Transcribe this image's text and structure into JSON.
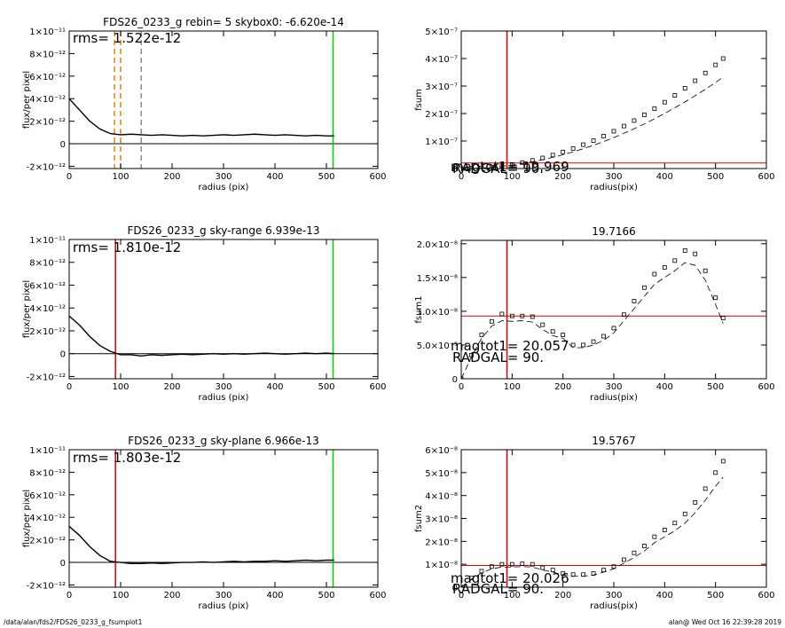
{
  "footer_left": "/data/alan/fds2/FDS26_0233_g_fsumplot1",
  "footer_right": "alan@  Wed Oct 16 22:39:28 2019",
  "chart_data": [
    {
      "type": "line",
      "title": "FDS26_0233_g rebin= 5    skybox0: -6.620e-14",
      "annotations": [
        "rms= 1.522e-12"
      ],
      "xlabel": "radius (pix)",
      "ylabel": "flux/per pixel",
      "xlim": [
        0,
        600
      ],
      "xticks": [
        0,
        100,
        200,
        300,
        400,
        500,
        600
      ],
      "ylim": [
        -2.2e-12,
        1e-11
      ],
      "yticks": [
        {
          "value": -2e-12,
          "label": "-2×10⁻¹²"
        },
        0,
        {
          "value": 2e-12,
          "label": "2×10⁻¹²"
        },
        {
          "value": 4e-12,
          "label": "4×10⁻¹²"
        },
        {
          "value": 6e-12,
          "label": "6×10⁻¹²"
        },
        {
          "value": 8e-12,
          "label": "8×10⁻¹²"
        },
        {
          "value": 1e-11,
          "label": "1×10⁻¹¹"
        }
      ],
      "x": [
        0,
        20,
        40,
        60,
        80,
        100,
        120,
        140,
        160,
        180,
        200,
        220,
        240,
        260,
        280,
        300,
        320,
        340,
        360,
        380,
        400,
        420,
        440,
        460,
        480,
        500,
        515
      ],
      "series": [
        {
          "color": "#000000",
          "style": "line",
          "values": [
            4e-12,
            3e-12,
            2e-12,
            1.3e-12,
            9e-13,
            8e-13,
            8.5e-13,
            8e-13,
            7.5e-13,
            8e-13,
            7.5e-13,
            7e-13,
            7.5e-13,
            7e-13,
            7.5e-13,
            8e-13,
            7.5e-13,
            8e-13,
            8.5e-13,
            8e-13,
            7.5e-13,
            8e-13,
            7.5e-13,
            7e-13,
            7.5e-13,
            7e-13,
            7e-13
          ]
        }
      ],
      "vlines": [
        {
          "x": 88,
          "color": "#f08000",
          "dash": true
        },
        {
          "x": 100,
          "color": "#f08000",
          "dash": true
        },
        {
          "x": 140,
          "color": "#888888",
          "dash": true
        },
        {
          "x": 513,
          "color": "#00d000",
          "dash": false
        }
      ],
      "hlines": [
        {
          "y": 0,
          "color": "#000000"
        }
      ]
    },
    {
      "type": "line",
      "title": "",
      "annotations": [
        "magtot1= 19.969",
        "RADGAL=    90."
      ],
      "xlabel": "radius(pix)",
      "ylabel": "fsum",
      "xlim": [
        0,
        600
      ],
      "xticks": [
        0,
        100,
        200,
        300,
        400,
        500,
        600
      ],
      "ylim": [
        0,
        5e-07
      ],
      "yticks": [
        0,
        {
          "value": 1e-07,
          "label": "1×10⁻⁷"
        },
        {
          "value": 2e-07,
          "label": "2×10⁻⁷"
        },
        {
          "value": 3e-07,
          "label": "3×10⁻⁷"
        },
        {
          "value": 4e-07,
          "label": "4×10⁻⁷"
        },
        {
          "value": 5e-07,
          "label": "5×10⁻⁷"
        }
      ],
      "x": [
        0,
        20,
        40,
        60,
        80,
        100,
        120,
        140,
        160,
        180,
        200,
        220,
        240,
        260,
        280,
        300,
        320,
        340,
        360,
        380,
        400,
        420,
        440,
        460,
        480,
        500,
        515
      ],
      "series": [
        {
          "color": "#000000",
          "style": "squares",
          "values": [
            0,
            6e-10,
            2.4e-09,
            5.4e-09,
            9.7e-09,
            1.51e-08,
            2.17e-08,
            2.96e-08,
            3.86e-08,
            4.89e-08,
            6.03e-08,
            7.3e-08,
            8.69e-08,
            1.019e-07,
            1.182e-07,
            1.357e-07,
            1.544e-07,
            1.743e-07,
            1.955e-07,
            2.178e-07,
            2.413e-07,
            2.661e-07,
            2.92e-07,
            3.191e-07,
            3.475e-07,
            3.77e-07,
            4e-07
          ]
        },
        {
          "color": "#000000",
          "style": "dashed",
          "values": [
            0,
            5e-10,
            2e-09,
            4.5e-09,
            8.1e-09,
            1.25e-08,
            1.8e-08,
            2.46e-08,
            3.2e-08,
            4.06e-08,
            5e-08,
            6.06e-08,
            7.21e-08,
            8.46e-08,
            9.81e-08,
            1.126e-07,
            1.282e-07,
            1.447e-07,
            1.623e-07,
            1.808e-07,
            2.003e-07,
            2.209e-07,
            2.424e-07,
            2.649e-07,
            2.884e-07,
            3.129e-07,
            3.32e-07
          ]
        }
      ],
      "vlines": [
        {
          "x": 90,
          "color": "#e00000",
          "dash": false
        }
      ],
      "hlines": [
        {
          "y": 2e-08,
          "color": "#e00000"
        }
      ]
    },
    {
      "type": "line",
      "title": "FDS26_0233_g sky-range  6.939e-13",
      "annotations": [
        "rms= 1.810e-12"
      ],
      "xlabel": "radius (pix)",
      "ylabel": "flux/per pixel",
      "xlim": [
        0,
        600
      ],
      "xticks": [
        0,
        100,
        200,
        300,
        400,
        500,
        600
      ],
      "ylim": [
        -2.2e-12,
        1e-11
      ],
      "yticks": [
        {
          "value": -2e-12,
          "label": "-2×10⁻¹²"
        },
        0,
        {
          "value": 2e-12,
          "label": "2×10⁻¹²"
        },
        {
          "value": 4e-12,
          "label": "4×10⁻¹²"
        },
        {
          "value": 6e-12,
          "label": "6×10⁻¹²"
        },
        {
          "value": 8e-12,
          "label": "8×10⁻¹²"
        },
        {
          "value": 1e-11,
          "label": "1×10⁻¹¹"
        }
      ],
      "x": [
        0,
        20,
        40,
        60,
        80,
        100,
        120,
        140,
        160,
        180,
        200,
        220,
        240,
        260,
        280,
        300,
        320,
        340,
        360,
        380,
        400,
        420,
        440,
        460,
        480,
        500,
        515
      ],
      "series": [
        {
          "color": "#000000",
          "style": "line",
          "values": [
            3.3e-12,
            2.5e-12,
            1.5e-12,
            7e-13,
            2e-13,
            -1e-13,
            -1e-13,
            -2e-13,
            -1e-13,
            -1.5e-13,
            -1e-13,
            -5e-14,
            -1e-13,
            -5e-14,
            0,
            -5e-14,
            0,
            -5e-14,
            0,
            5e-14,
            0,
            -5e-14,
            0,
            5e-14,
            0,
            5e-14,
            0
          ]
        }
      ],
      "vlines": [
        {
          "x": 90,
          "color": "#e00000",
          "dash": false
        },
        {
          "x": 513,
          "color": "#00d000",
          "dash": false
        }
      ],
      "hlines": [
        {
          "y": 0,
          "color": "#000000"
        }
      ]
    },
    {
      "type": "line",
      "title": "19.7166",
      "annotations": [
        "magtot1=  20.057",
        "RADGAL=    90."
      ],
      "xlabel": "radius(pix)",
      "ylabel": "fsum1",
      "xlim": [
        0,
        600
      ],
      "xticks": [
        0,
        100,
        200,
        300,
        400,
        500,
        600
      ],
      "ylim": [
        0,
        2.05e-08
      ],
      "yticks": [
        0,
        {
          "value": 5e-09,
          "label": "5.0×10⁻⁹"
        },
        {
          "value": 1e-08,
          "label": "1.0×10⁻⁸"
        },
        {
          "value": 1.5e-08,
          "label": "1.5×10⁻⁸"
        },
        {
          "value": 2e-08,
          "label": "2.0×10⁻⁸"
        }
      ],
      "x": [
        0,
        20,
        40,
        60,
        80,
        100,
        120,
        140,
        160,
        180,
        200,
        220,
        240,
        260,
        280,
        300,
        320,
        340,
        360,
        380,
        400,
        420,
        440,
        460,
        480,
        500,
        515
      ],
      "series": [
        {
          "color": "#000000",
          "style": "squares",
          "values": [
            0,
            3.5e-09,
            6.5e-09,
            8.5e-09,
            9.6e-09,
            9.3e-09,
            9.3e-09,
            9.2e-09,
            8e-09,
            7e-09,
            6.5e-09,
            5e-09,
            5e-09,
            5.5e-09,
            6.3e-09,
            7.5e-09,
            9.5e-09,
            1.15e-08,
            1.35e-08,
            1.55e-08,
            1.65e-08,
            1.75e-08,
            1.9e-08,
            1.85e-08,
            1.6e-08,
            1.2e-08,
            9e-09
          ]
        },
        {
          "color": "#000000",
          "style": "dashed",
          "values": [
            0,
            3.2e-09,
            6e-09,
            7.8e-09,
            8.6e-09,
            8.5e-09,
            8.6e-09,
            8.4e-09,
            7.3e-09,
            6.4e-09,
            6e-09,
            4.6e-09,
            4.6e-09,
            5e-09,
            5.7e-09,
            6.8e-09,
            8.6e-09,
            1.04e-08,
            1.22e-08,
            1.4e-08,
            1.5e-08,
            1.6e-08,
            1.72e-08,
            1.68e-08,
            1.46e-08,
            1.1e-08,
            8.2e-09
          ]
        }
      ],
      "vlines": [
        {
          "x": 90,
          "color": "#e00000",
          "dash": false
        }
      ],
      "hlines": [
        {
          "y": 9.3e-09,
          "color": "#e00000"
        }
      ]
    },
    {
      "type": "line",
      "title": "FDS26_0233_g sky-plane  6.966e-13",
      "annotations": [
        "rms= 1.803e-12"
      ],
      "xlabel": "radius (pix)",
      "ylabel": "flux/per pixel",
      "xlim": [
        0,
        600
      ],
      "xticks": [
        0,
        100,
        200,
        300,
        400,
        500,
        600
      ],
      "ylim": [
        -2.2e-12,
        1e-11
      ],
      "yticks": [
        {
          "value": -2e-12,
          "label": "-2×10⁻¹²"
        },
        0,
        {
          "value": 2e-12,
          "label": "2×10⁻¹²"
        },
        {
          "value": 4e-12,
          "label": "4×10⁻¹²"
        },
        {
          "value": 6e-12,
          "label": "6×10⁻¹²"
        },
        {
          "value": 8e-12,
          "label": "8×10⁻¹²"
        },
        {
          "value": 1e-11,
          "label": "1×10⁻¹¹"
        }
      ],
      "x": [
        0,
        20,
        40,
        60,
        80,
        100,
        120,
        140,
        160,
        180,
        200,
        220,
        240,
        260,
        280,
        300,
        320,
        340,
        360,
        380,
        400,
        420,
        440,
        460,
        480,
        500,
        515
      ],
      "series": [
        {
          "color": "#000000",
          "style": "line",
          "values": [
            3.2e-12,
            2.4e-12,
            1.4e-12,
            6e-13,
            1e-13,
            0,
            -1e-13,
            -1e-13,
            -5e-14,
            -1e-13,
            -5e-14,
            0,
            0,
            5e-14,
            0,
            5e-14,
            1e-13,
            5e-14,
            1e-13,
            1e-13,
            1.5e-13,
            1e-13,
            1.5e-13,
            2e-13,
            1.5e-13,
            2e-13,
            2e-13
          ]
        }
      ],
      "vlines": [
        {
          "x": 90,
          "color": "#e00000",
          "dash": false
        },
        {
          "x": 513,
          "color": "#00d000",
          "dash": false
        }
      ],
      "hlines": [
        {
          "y": 0,
          "color": "#000000"
        }
      ]
    },
    {
      "type": "line",
      "title": "19.5767",
      "annotations": [
        "magtot1=  20.026",
        "RADGAL=    90."
      ],
      "xlabel": "radius(pix)",
      "ylabel": "fsum2",
      "xlim": [
        0,
        600
      ],
      "xticks": [
        0,
        100,
        200,
        300,
        400,
        500,
        600
      ],
      "ylim": [
        0,
        6e-08
      ],
      "yticks": [
        0,
        {
          "value": 1e-08,
          "label": "1×10⁻⁸"
        },
        {
          "value": 2e-08,
          "label": "2×10⁻⁸"
        },
        {
          "value": 3e-08,
          "label": "3×10⁻⁸"
        },
        {
          "value": 4e-08,
          "label": "4×10⁻⁸"
        },
        {
          "value": 5e-08,
          "label": "5×10⁻⁸"
        },
        {
          "value": 6e-08,
          "label": "6×10⁻⁸"
        }
      ],
      "x": [
        0,
        20,
        40,
        60,
        80,
        100,
        120,
        140,
        160,
        180,
        200,
        220,
        240,
        260,
        280,
        300,
        320,
        340,
        360,
        380,
        400,
        420,
        440,
        460,
        480,
        500,
        515
      ],
      "series": [
        {
          "color": "#000000",
          "style": "squares",
          "values": [
            0,
            4e-09,
            7e-09,
            9e-09,
            1e-08,
            1e-08,
            1.02e-08,
            1e-08,
            8.5e-09,
            7.5e-09,
            6e-09,
            5.5e-09,
            5.5e-09,
            6e-09,
            7.5e-09,
            9e-09,
            1.2e-08,
            1.5e-08,
            1.8e-08,
            2.2e-08,
            2.5e-08,
            2.8e-08,
            3.2e-08,
            3.7e-08,
            4.3e-08,
            5e-08,
            5.5e-08
          ]
        },
        {
          "color": "#000000",
          "style": "dashed",
          "values": [
            0,
            3.5e-09,
            6.2e-09,
            8e-09,
            8.8e-09,
            8.8e-09,
            9e-09,
            8.8e-09,
            7.5e-09,
            6.6e-09,
            5.3e-09,
            4.8e-09,
            4.8e-09,
            5.3e-09,
            6.6e-09,
            8e-09,
            1.05e-08,
            1.3e-08,
            1.58e-08,
            1.94e-08,
            2.2e-08,
            2.46e-08,
            2.8e-08,
            3.25e-08,
            3.8e-08,
            4.4e-08,
            4.8e-08
          ]
        }
      ],
      "vlines": [
        {
          "x": 90,
          "color": "#e00000",
          "dash": false
        }
      ],
      "hlines": [
        {
          "y": 9.5e-09,
          "color": "#e00000"
        }
      ]
    }
  ]
}
